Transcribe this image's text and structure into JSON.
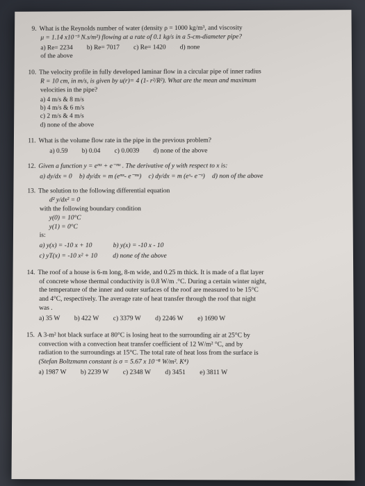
{
  "q9": {
    "num": "9.",
    "line1": "What is the Reynolds number of water (density ρ = 1000 kg/m³, and viscosity",
    "line2": "μ = 1.14 x10⁻³ N.s/m²) flowing at a rate of 0.1 kg/s in a 5-cm-diameter pipe?",
    "opts_line1_a": "a) Re= 2234",
    "opts_line1_b": "b) Re= 7017",
    "opts_line1_c": "c) Re=  1420",
    "opts_line1_d": "d) none",
    "opts_line2": "of the above"
  },
  "q10": {
    "num": "10.",
    "line1": "The velocity profile in fully developed laminar flow in a circular pipe of inner radius",
    "line2": "R = 10 cm, in m/s, is given by u(r)= 4 (1- r²/R²). What are the mean and maximum",
    "line3": "velocities in the pipe?",
    "opt_a": "a)  4 m/s  & 8 m/s",
    "opt_b": "b)  4 m/s & 6 m/s",
    "opt_c": "c)  2 m/s & 4 m/s",
    "opt_d": "d)  none of the above"
  },
  "q11": {
    "num": "11.",
    "line1": "What is the volume flow rate in the pipe in the previous problem?",
    "opt_a": "a)  0.59",
    "opt_b": "b) 0.04",
    "opt_c": "c)  0.0039",
    "opt_d": "d) none of the above"
  },
  "q12": {
    "num": "12.",
    "line1": "Given a function y = eᵐˣ + e⁻ᵐˣ . The derivative of y with respect to x is:",
    "opt_a": "a) dy/dx = 0",
    "opt_b": "b) dy/dx = m (eᵐˣ- e⁻ᵐˣ)",
    "opt_c": "c) dy/dx = m (eˣ- e⁻ˣ)",
    "opt_d": "d) non of the above"
  },
  "q13": {
    "num": "13.",
    "line1": "The solution to the following differential equation",
    "eq": "d² y/dx² = 0",
    "line2": "with the following boundary condition",
    "bc1": "y(0) = 10°C",
    "bc2": "y(1) = 0°C",
    "line3": "is:",
    "opt_a": "a) y(x) = -10 x + 10",
    "opt_b": "b) y(x) = -10 x - 10",
    "opt_c": "c) yT(x) = -10 x² + 10",
    "opt_d": "d) none of the above"
  },
  "q14": {
    "num": "14.",
    "line1": "The roof of a house is 6-m long, 8-m wide, and 0.25 m thick. It is made of a flat layer",
    "line2": "of concrete whose thermal conductivity is 0.8 W/m .°C. During a certain winter night,",
    "line3": "the temperature of the inner and outer surfaces of the roof are measured to be 15°C",
    "line4": "and 4°C, respectively. The average rate of heat transfer through the roof that night",
    "line5": "was .",
    "opt_a": "a) 35 W",
    "opt_b": "b) 422 W",
    "opt_c": "c) 3379 W",
    "opt_d": "d) 2246 W",
    "opt_e": "e) 1690 W"
  },
  "q15": {
    "num": "15.",
    "line1": "A 3-m² hot black surface at 80°C is losing heat to the surrounding air at 25°C by",
    "line2": "convection with a convection heat transfer coefficient of 12 W/m² °C, and by",
    "line3": "radiation to the surroundings at 15°C. The total rate of heat loss from the surface is",
    "line4": "(Stefan Boltzmann constant is σ = 5.67 x 10⁻⁸ W/m². K⁴)",
    "opt_a": "a) 1987 W",
    "opt_b": "b) 2239 W",
    "opt_c": "c) 2348 W",
    "opt_d": "d) 3451",
    "opt_e": "e) 3811 W"
  }
}
